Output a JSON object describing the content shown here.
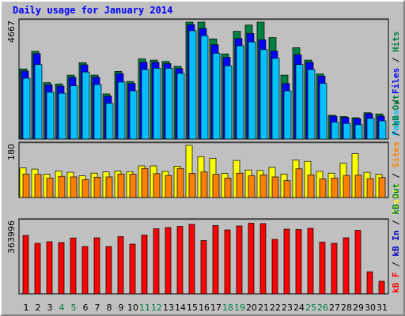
{
  "title": "Daily usage for January 2014",
  "colors": {
    "background": "#c0c0c0",
    "hits": "#008040",
    "files": "#0000ff",
    "pages": "#00c0ff",
    "visits": "#ffff00",
    "sites": "#ff8000",
    "kbin": "#0000c0",
    "kbout": "#008040",
    "kbf": "#ff0000",
    "weekend_label": "#008040",
    "weekday_label": "#000000"
  },
  "chart_data": [
    {
      "type": "bar",
      "ylabel_parts": [
        "Pages",
        "Files",
        "Hits"
      ],
      "ymax_label": "4667",
      "ylim": [
        0,
        4667
      ],
      "categories": [
        "1",
        "2",
        "3",
        "4",
        "5",
        "6",
        "7",
        "8",
        "9",
        "10",
        "11",
        "12",
        "13",
        "14",
        "15",
        "16",
        "17",
        "18",
        "19",
        "20",
        "21",
        "22",
        "23",
        "24",
        "25",
        "26",
        "27",
        "28",
        "29",
        "30",
        "31"
      ],
      "weekend_days": [
        "4",
        "5",
        "11",
        "12",
        "18",
        "19",
        "25",
        "26"
      ],
      "series": [
        {
          "name": "Hits",
          "values": [
            2800,
            3500,
            2250,
            2200,
            2550,
            3050,
            2550,
            1800,
            2700,
            2300,
            3200,
            3150,
            3100,
            2900,
            4750,
            4750,
            4000,
            3400,
            4300,
            4550,
            4750,
            4050,
            2550,
            3650,
            3150,
            2600,
            950,
            900,
            850,
            1050,
            1000
          ]
        },
        {
          "name": "Files",
          "values": [
            2750,
            3450,
            2200,
            2150,
            2500,
            3000,
            2500,
            1750,
            2650,
            2250,
            3100,
            3100,
            3050,
            2850,
            4600,
            4450,
            3800,
            3300,
            4050,
            4250,
            4000,
            3550,
            2250,
            3400,
            3100,
            2550,
            950,
            900,
            850,
            1050,
            950
          ]
        },
        {
          "name": "Pages",
          "values": [
            2500,
            3050,
            1950,
            1900,
            2200,
            2750,
            2250,
            1500,
            2350,
            2000,
            2850,
            2900,
            2900,
            2700,
            4400,
            4200,
            3500,
            3000,
            3800,
            3950,
            3650,
            3300,
            2000,
            3050,
            2850,
            2300,
            750,
            700,
            650,
            900,
            800
          ]
        }
      ]
    },
    {
      "type": "bar",
      "ylabel_parts": [
        "Visits",
        "Sites",
        "kB Out"
      ],
      "ymax_label": "180",
      "ylim": [
        0,
        180
      ],
      "categories": [
        "1",
        "2",
        "3",
        "4",
        "5",
        "6",
        "7",
        "8",
        "9",
        "10",
        "11",
        "12",
        "13",
        "14",
        "15",
        "16",
        "17",
        "18",
        "19",
        "20",
        "21",
        "22",
        "23",
        "24",
        "25",
        "26",
        "27",
        "28",
        "29",
        "30",
        "31"
      ],
      "series": [
        {
          "name": "Visits",
          "values": [
            102,
            98,
            80,
            91,
            87,
            75,
            84,
            88,
            91,
            89,
            109,
            109,
            90,
            108,
            180,
            141,
            135,
            83,
            128,
            95,
            93,
            104,
            81,
            129,
            125,
            90,
            84,
            118,
            151,
            87,
            80
          ]
        },
        {
          "name": "Sites",
          "values": [
            81,
            80,
            67,
            73,
            71,
            62,
            70,
            71,
            81,
            80,
            100,
            82,
            76,
            100,
            83,
            88,
            80,
            67,
            84,
            75,
            78,
            71,
            58,
            99,
            78,
            64,
            67,
            76,
            77,
            65,
            69
          ]
        }
      ]
    },
    {
      "type": "bar",
      "ylabel_parts": [
        "kB F",
        "kB In",
        "kB Out"
      ],
      "ymax_label": "363996",
      "ylim": [
        0,
        363996
      ],
      "categories": [
        "1",
        "2",
        "3",
        "4",
        "5",
        "6",
        "7",
        "8",
        "9",
        "10",
        "11",
        "12",
        "13",
        "14",
        "15",
        "16",
        "17",
        "18",
        "19",
        "20",
        "21",
        "22",
        "23",
        "24",
        "25",
        "26",
        "27",
        "28",
        "29",
        "30",
        "31"
      ],
      "series": [
        {
          "name": "kB F",
          "values": [
            296000,
            256000,
            264000,
            260000,
            283000,
            240000,
            284000,
            240000,
            290000,
            252000,
            298000,
            330000,
            336000,
            342000,
            352000,
            270000,
            346000,
            324000,
            344000,
            358000,
            356000,
            276000,
            328000,
            326000,
            332000,
            262000,
            256000,
            284000,
            322000,
            112000,
            64000
          ]
        }
      ]
    }
  ]
}
